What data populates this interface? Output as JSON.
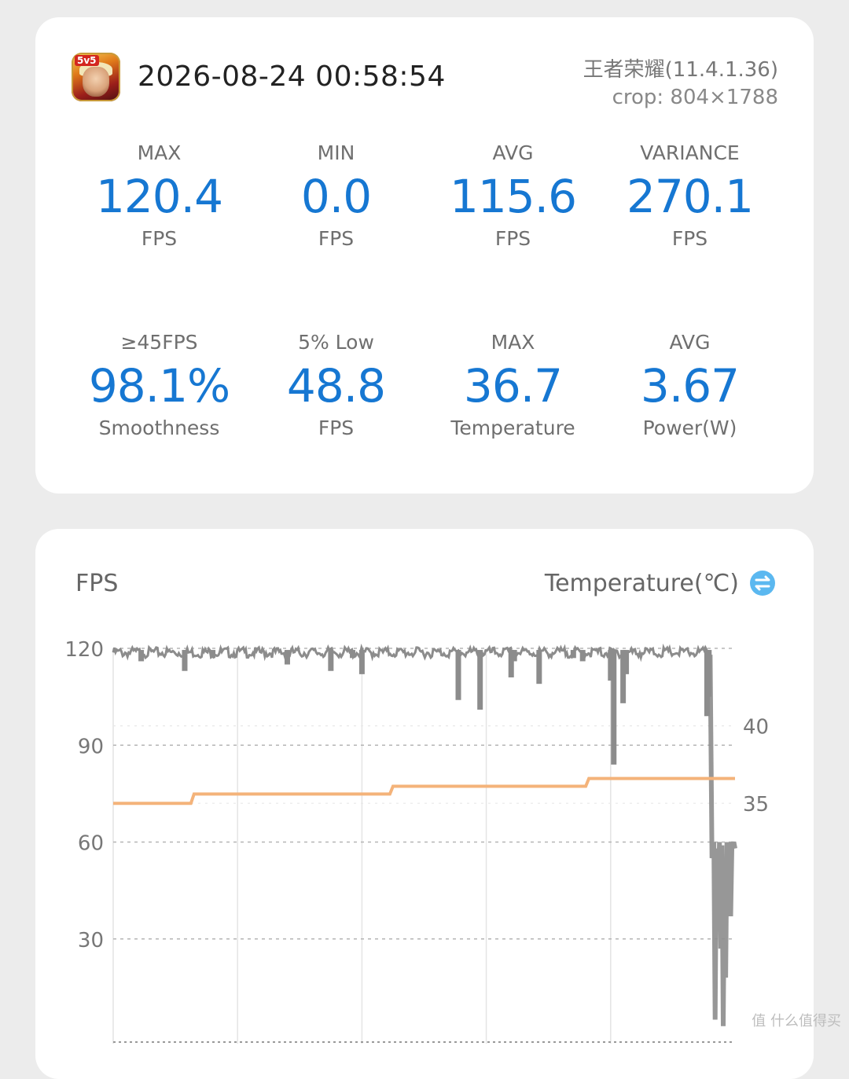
{
  "header": {
    "app_icon": "honor-of-kings-app-icon",
    "app_icon_badge": "5v5",
    "timestamp": "2026-08-24 00:58:54",
    "app_name": "王者荣耀(11.4.1.36)",
    "crop": "crop: 804×1788"
  },
  "stats": [
    {
      "label": "MAX",
      "value": "120.4",
      "unit": "FPS"
    },
    {
      "label": "MIN",
      "value": "0.0",
      "unit": "FPS"
    },
    {
      "label": "AVG",
      "value": "115.6",
      "unit": "FPS"
    },
    {
      "label": "VARIANCE",
      "value": "270.1",
      "unit": "FPS"
    },
    {
      "label": "≥45FPS",
      "value": "98.1%",
      "unit": "Smoothness"
    },
    {
      "label": "5% Low",
      "value": "48.8",
      "unit": "FPS"
    },
    {
      "label": "MAX",
      "value": "36.7",
      "unit": "Temperature"
    },
    {
      "label": "AVG",
      "value": "3.67",
      "unit": "Power(W)"
    }
  ],
  "colors": {
    "value_blue": "#1677d2",
    "fps_line": "#8c8c8c",
    "temperature_line": "#f4b37a",
    "swap_icon": "#5bb8f0"
  },
  "chart": {
    "left_title": "FPS",
    "right_title": "Temperature(℃)",
    "swap_icon": "swap-arrows-icon",
    "watermark": "值 什么值得买"
  },
  "chart_data": {
    "type": "line",
    "left_axis": {
      "label": "FPS",
      "ticks": [
        120,
        90,
        60,
        30
      ],
      "ylim": [
        0,
        120
      ]
    },
    "right_axis": {
      "label": "Temperature(℃)",
      "ticks": [
        40,
        35
      ],
      "ylim": [
        20,
        45
      ]
    },
    "grid": true,
    "series": [
      {
        "name": "FPS",
        "axis": "left",
        "baseline": 119.5,
        "dips": [
          {
            "x": 0.045,
            "y": 116
          },
          {
            "x": 0.115,
            "y": 113
          },
          {
            "x": 0.16,
            "y": 117
          },
          {
            "x": 0.28,
            "y": 115
          },
          {
            "x": 0.35,
            "y": 113
          },
          {
            "x": 0.385,
            "y": 117
          },
          {
            "x": 0.4,
            "y": 112
          },
          {
            "x": 0.555,
            "y": 104
          },
          {
            "x": 0.59,
            "y": 101
          },
          {
            "x": 0.64,
            "y": 111
          },
          {
            "x": 0.645,
            "y": 116
          },
          {
            "x": 0.685,
            "y": 109
          },
          {
            "x": 0.74,
            "y": 117
          },
          {
            "x": 0.755,
            "y": 116
          },
          {
            "x": 0.8,
            "y": 110
          },
          {
            "x": 0.805,
            "y": 84
          },
          {
            "x": 0.82,
            "y": 103
          },
          {
            "x": 0.825,
            "y": 112
          },
          {
            "x": 0.955,
            "y": 99
          },
          {
            "x": 0.958,
            "y": 105
          }
        ],
        "tail": [
          {
            "x": 0.96,
            "y": 118
          },
          {
            "x": 0.963,
            "y": 55
          },
          {
            "x": 0.966,
            "y": 60
          },
          {
            "x": 0.968,
            "y": 5
          },
          {
            "x": 0.97,
            "y": 58
          },
          {
            "x": 0.972,
            "y": 35
          },
          {
            "x": 0.975,
            "y": 60
          },
          {
            "x": 0.977,
            "y": 27
          },
          {
            "x": 0.979,
            "y": 59
          },
          {
            "x": 0.981,
            "y": 3
          },
          {
            "x": 0.983,
            "y": 50
          },
          {
            "x": 0.985,
            "y": 18
          },
          {
            "x": 0.987,
            "y": 60
          },
          {
            "x": 0.989,
            "y": 40
          },
          {
            "x": 0.991,
            "y": 60
          },
          {
            "x": 0.993,
            "y": 37
          },
          {
            "x": 0.995,
            "y": 58
          },
          {
            "x": 0.998,
            "y": 60
          },
          {
            "x": 1.0,
            "y": 58
          }
        ]
      },
      {
        "name": "Temperature",
        "axis": "right",
        "steps": [
          {
            "x": 0.0,
            "y": 35.0
          },
          {
            "x": 0.13,
            "y": 35.6
          },
          {
            "x": 0.45,
            "y": 36.1
          },
          {
            "x": 0.765,
            "y": 36.6
          },
          {
            "x": 1.0,
            "y": 36.6
          }
        ]
      }
    ]
  }
}
